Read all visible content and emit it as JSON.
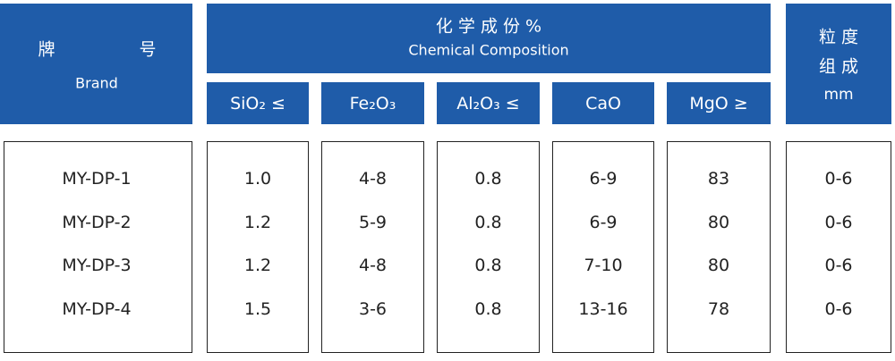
{
  "header": {
    "brand_cn_1": "牌",
    "brand_cn_2": "号",
    "brand_en": "Brand",
    "composition_cn": "化 学 成 份 %",
    "composition_en": "Chemical Composition",
    "columns": [
      "SiO₂ ≤",
      "Fe₂O₃",
      "Al₂O₃ ≤",
      "CaO",
      "MgO ≥"
    ],
    "size_cn_1": "粒 度",
    "size_cn_2": "组 成",
    "size_unit": "mm"
  },
  "table": {
    "rows": [
      [
        "MY-DP-1",
        "1.0",
        "4-8",
        "0.8",
        "6-9",
        "83",
        "0-6"
      ],
      [
        "MY-DP-2",
        "1.2",
        "5-9",
        "0.8",
        "6-9",
        "80",
        "0-6"
      ],
      [
        "MY-DP-3",
        "1.2",
        "4-8",
        "0.8",
        "7-10",
        "80",
        "0-6"
      ],
      [
        "MY-DP-4",
        "1.5",
        "3-6",
        "0.8",
        "13-16",
        "78",
        "0-6"
      ]
    ]
  }
}
